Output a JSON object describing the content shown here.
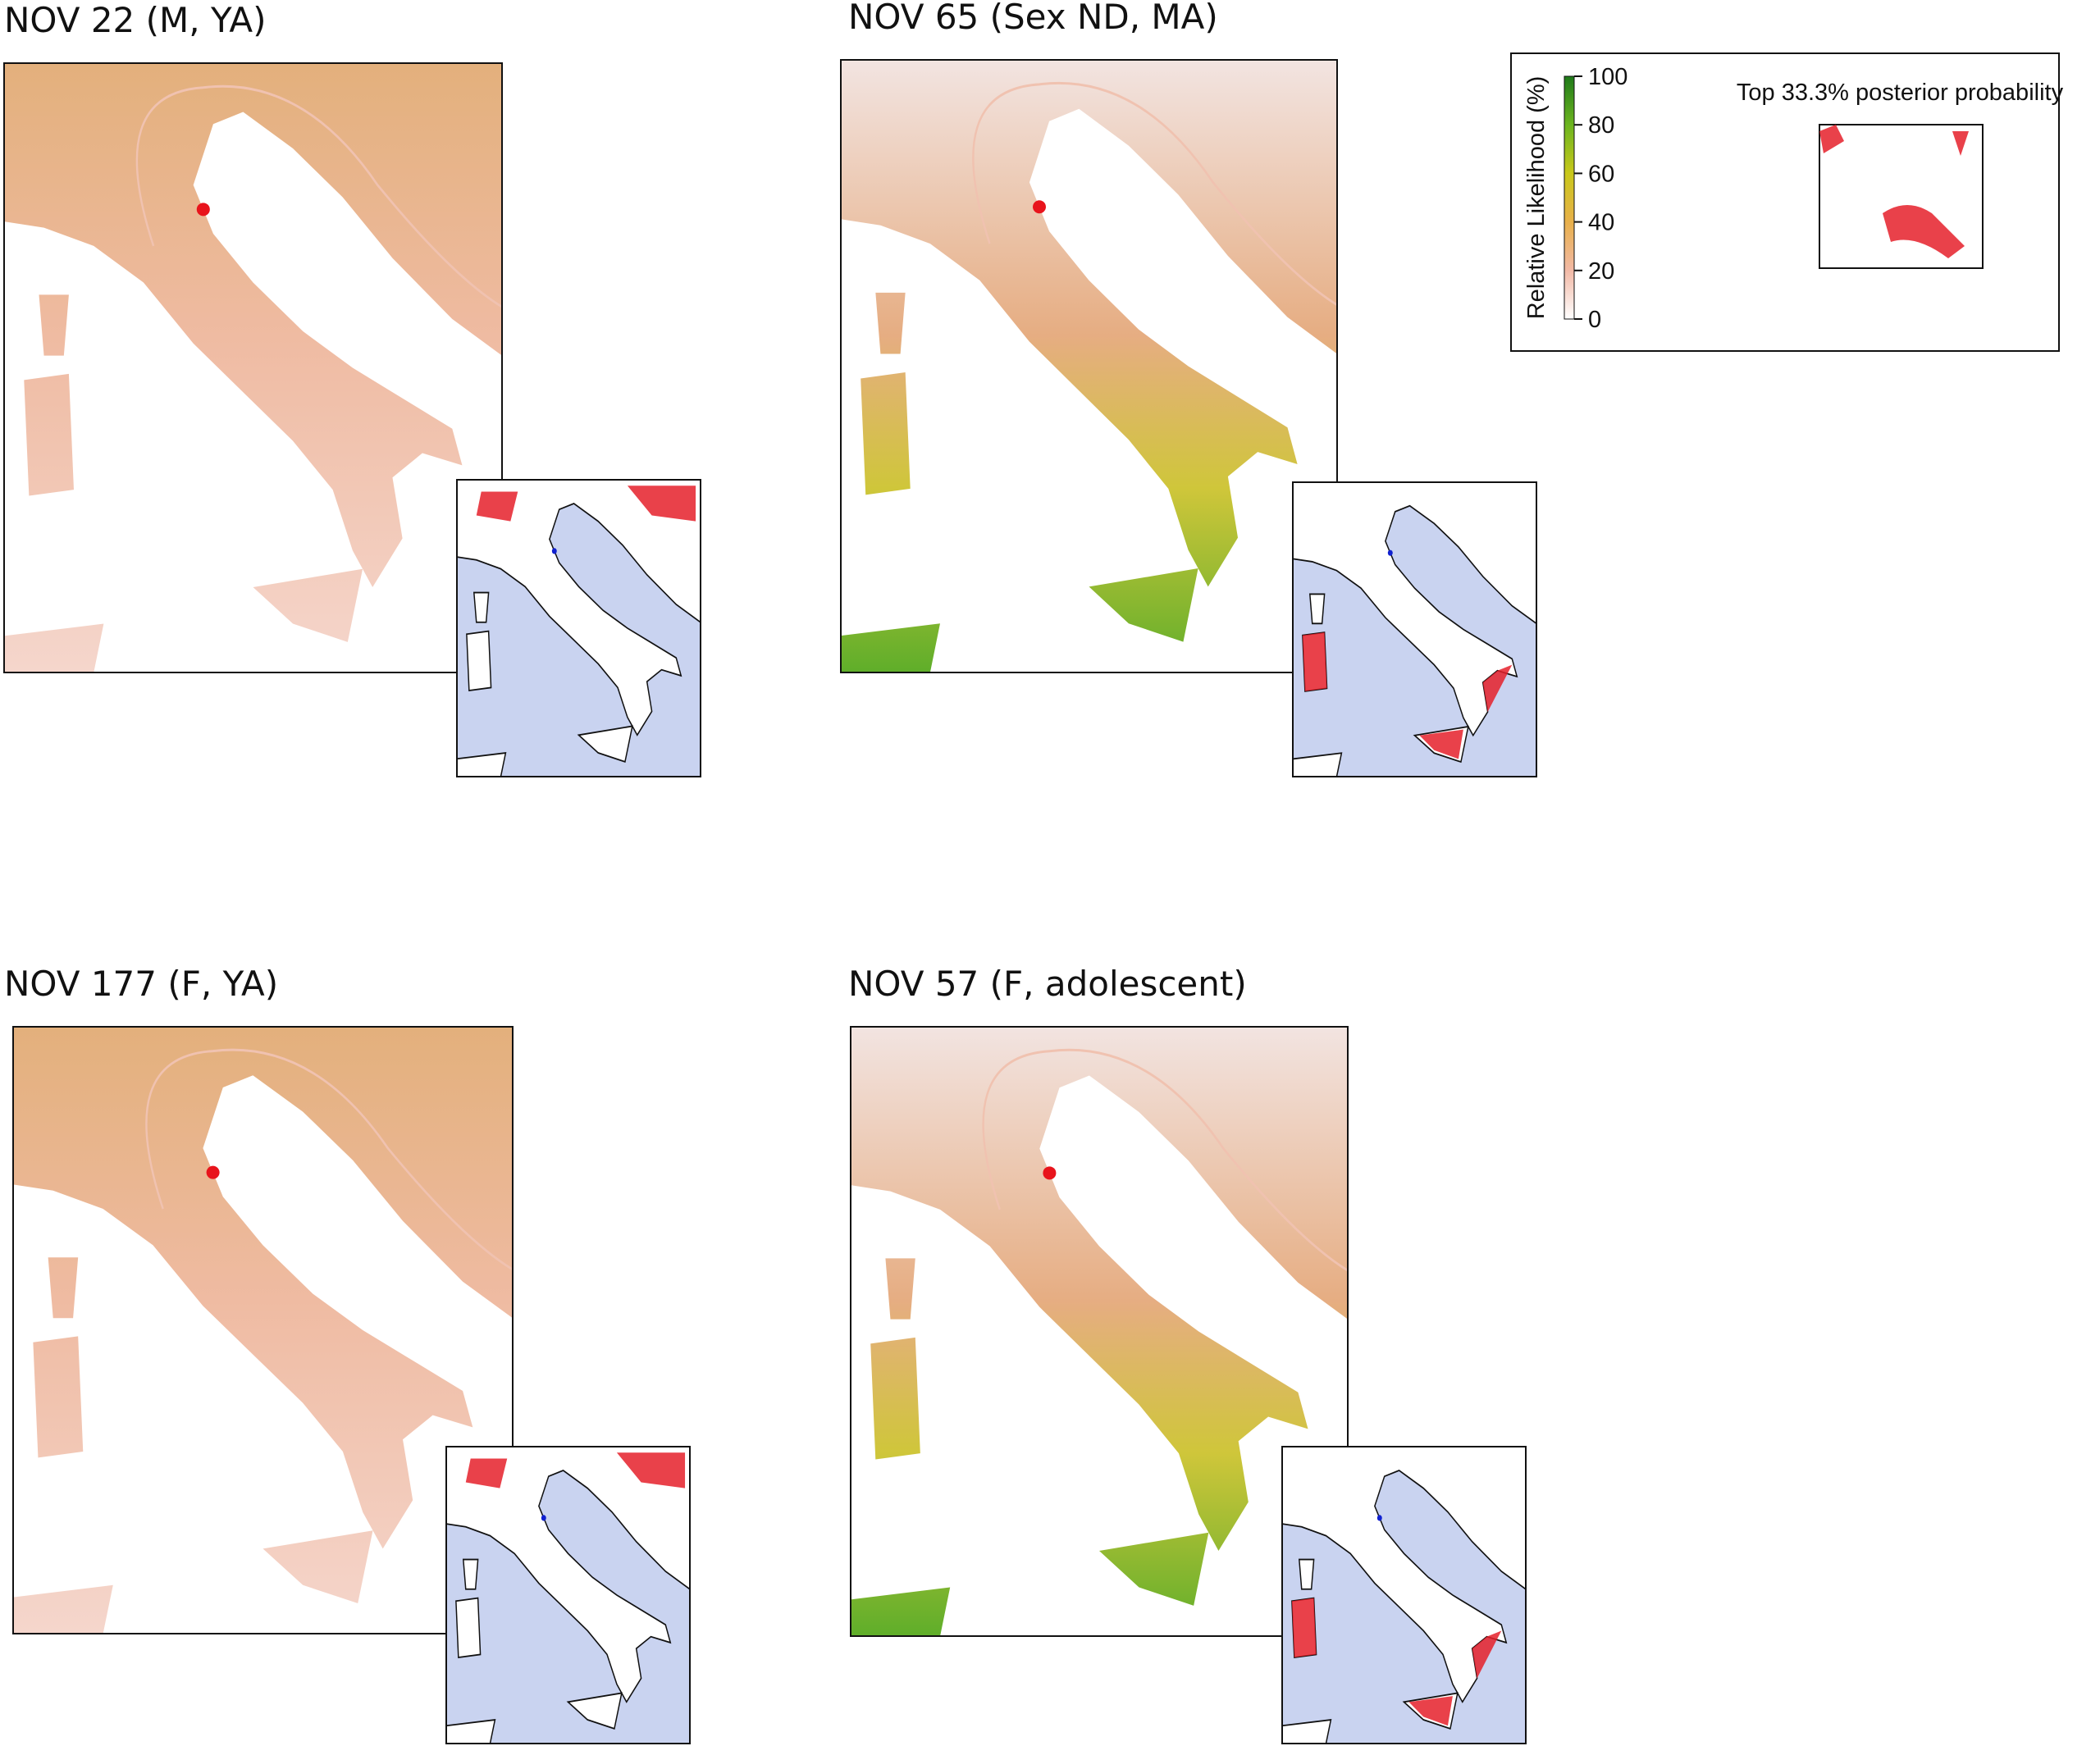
{
  "panels": [
    {
      "title": "NOV 22 (M, YA)"
    },
    {
      "title": "NOV 65 (Sex ND, MA)"
    },
    {
      "title": "NOV 177 (F, YA)"
    },
    {
      "title": "NOV 57 (F, adolescent)"
    }
  ],
  "legend": {
    "title": "Relative Likelihood (%)",
    "ticks": [
      0,
      20,
      40,
      60,
      80,
      100
    ],
    "inset_label": "Top 33.3% posterior probability"
  }
}
